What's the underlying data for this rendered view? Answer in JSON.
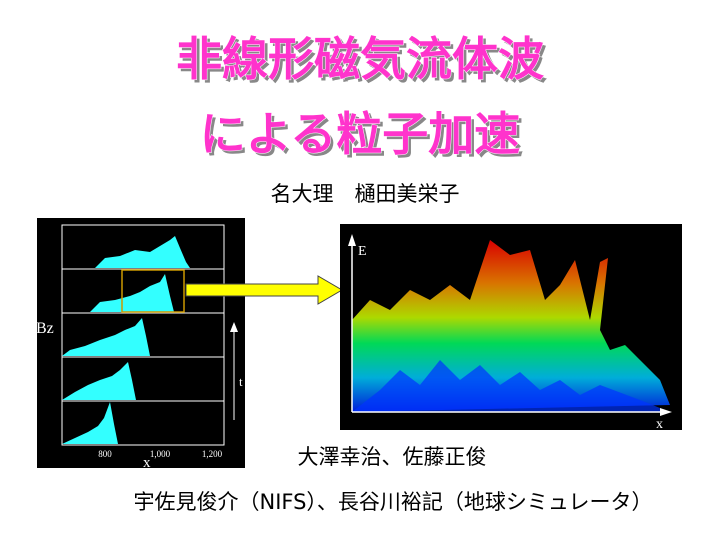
{
  "header": {
    "title_lines": [
      "非線形磁気流体波",
      "による粒子加速"
    ],
    "author": "名大理　樋田美栄子"
  },
  "left_figure": {
    "y_label": "Bz",
    "time_label": "t",
    "x_label": "x",
    "x_ticks": [
      "800",
      "1,000",
      "1,200"
    ]
  },
  "right_figure": {
    "y_label": "E",
    "x_label": "x"
  },
  "coauthors": "大澤幸治、佐藤正俊",
  "collaborators": "宇佐見俊介（NIFS）、長谷川裕記（地球シミュレータ）"
}
